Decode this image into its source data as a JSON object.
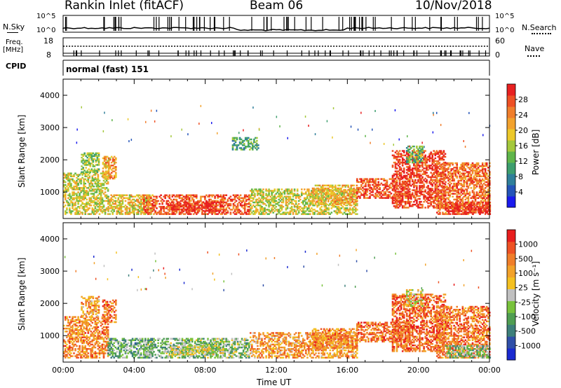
{
  "header": {
    "station": "Rankin Inlet (fitACF)",
    "beam": "Beam 06",
    "date": "10/Nov/2018"
  },
  "strips": {
    "nsky": {
      "left_label": "N.Sky",
      "left_ticks": [
        "10^5",
        "10^0"
      ],
      "right_label": "N.Search",
      "right_ticks": [
        "10^5",
        "10^0"
      ]
    },
    "freq": {
      "left_label": "Freq.",
      "left_unit": "[MHz]",
      "left_ticks": [
        "18",
        "8"
      ],
      "right_label": "Nave",
      "right_ticks": [
        "60",
        "0"
      ]
    },
    "cpid": {
      "left_label": "CPID",
      "text": "normal (fast) 151"
    }
  },
  "chart_data": [
    {
      "type": "heatmap",
      "name": "power-panel",
      "ylabel": "Slant Range [km]",
      "yticks": [
        "4000",
        "3000",
        "2000",
        "1000"
      ],
      "xticks": [
        "00:00",
        "04:00",
        "08:00",
        "12:00",
        "16:00",
        "20:00",
        "00:00"
      ],
      "xlim": [
        0,
        24
      ],
      "ylim": [
        180,
        4500
      ],
      "colorbar": {
        "label": "Power [dB]",
        "ticks": [
          "28",
          "24",
          "20",
          "16",
          "12",
          "8",
          "4"
        ],
        "range": [
          0,
          30
        ],
        "colors": [
          "#1a1aee",
          "#2454b8",
          "#2f7f9a",
          "#3d9e6e",
          "#5fb54a",
          "#a4c83c",
          "#ecc82a",
          "#f2a22e",
          "#f07e2c",
          "#ee5024",
          "#e82020"
        ]
      },
      "regions": [
        {
          "t0": 0.0,
          "t1": 2.5,
          "r0": 300,
          "r1": 1600,
          "level": 0.55
        },
        {
          "t0": 1.0,
          "t1": 2.0,
          "r0": 1600,
          "r1": 2200,
          "level": 0.45
        },
        {
          "t0": 2.2,
          "t1": 3.0,
          "r0": 1400,
          "r1": 2100,
          "level": 0.7
        },
        {
          "t0": 2.5,
          "t1": 5.0,
          "r0": 300,
          "r1": 900,
          "level": 0.6
        },
        {
          "t0": 4.5,
          "t1": 10.5,
          "r0": 300,
          "r1": 900,
          "level": 0.85
        },
        {
          "t0": 6.0,
          "t1": 9.0,
          "r0": 400,
          "r1": 700,
          "level": 0.95
        },
        {
          "t0": 10.5,
          "t1": 16.5,
          "r0": 300,
          "r1": 1100,
          "level": 0.55
        },
        {
          "t0": 14.0,
          "t1": 16.5,
          "r0": 600,
          "r1": 1200,
          "level": 0.65
        },
        {
          "t0": 16.5,
          "t1": 19.5,
          "r0": 800,
          "r1": 1400,
          "level": 0.85
        },
        {
          "t0": 18.5,
          "t1": 21.5,
          "r0": 500,
          "r1": 2300,
          "level": 0.9
        },
        {
          "t0": 21.0,
          "t1": 24.0,
          "r0": 300,
          "r1": 1900,
          "level": 0.8
        },
        {
          "t0": 21.5,
          "t1": 24.0,
          "r0": 300,
          "r1": 700,
          "level": 0.95
        },
        {
          "t0": 9.5,
          "t1": 11.0,
          "r0": 2300,
          "r1": 2700,
          "level": 0.35
        },
        {
          "t0": 19.3,
          "t1": 20.2,
          "r0": 1900,
          "r1": 2400,
          "level": 0.4
        }
      ]
    },
    {
      "type": "heatmap",
      "name": "velocity-panel",
      "ylabel": "Slant Range [km]",
      "yticks": [
        "4000",
        "3000",
        "2000",
        "1000"
      ],
      "xticks": [
        "00:00",
        "04:00",
        "08:00",
        "12:00",
        "16:00",
        "20:00",
        "00:00"
      ],
      "xlabel": "Time UT",
      "xlim": [
        0,
        24
      ],
      "ylim": [
        180,
        4500
      ],
      "colorbar": {
        "label": "Velocity [m s⁻¹]",
        "ticks": [
          "1000",
          "500",
          "100",
          "25",
          "-25",
          "-100",
          "-500",
          "-1000"
        ],
        "colors": [
          "#1a2ad0",
          "#2f4fa8",
          "#3d7f7a",
          "#4f9e52",
          "#78c23c",
          "#c0c0c0",
          "#f4c020",
          "#f2a22a",
          "#f07e2a",
          "#ee5224",
          "#e81e1e"
        ]
      },
      "regions": [
        {
          "t0": 0.0,
          "t1": 2.5,
          "r0": 300,
          "r1": 1600,
          "level": 0.75
        },
        {
          "t0": 1.0,
          "t1": 2.0,
          "r0": 1600,
          "r1": 2200,
          "level": 0.7
        },
        {
          "t0": 2.2,
          "t1": 3.0,
          "r0": 1400,
          "r1": 2100,
          "level": 0.8
        },
        {
          "t0": 2.5,
          "t1": 5.0,
          "r0": 300,
          "r1": 900,
          "level": 0.35
        },
        {
          "t0": 4.5,
          "t1": 10.5,
          "r0": 300,
          "r1": 900,
          "level": 0.4
        },
        {
          "t0": 6.0,
          "t1": 9.0,
          "r0": 400,
          "r1": 700,
          "level": 0.5
        },
        {
          "t0": 10.5,
          "t1": 16.5,
          "r0": 300,
          "r1": 1100,
          "level": 0.7
        },
        {
          "t0": 14.0,
          "t1": 16.5,
          "r0": 600,
          "r1": 1200,
          "level": 0.75
        },
        {
          "t0": 16.5,
          "t1": 19.5,
          "r0": 800,
          "r1": 1400,
          "level": 0.8
        },
        {
          "t0": 18.5,
          "t1": 21.5,
          "r0": 500,
          "r1": 2300,
          "level": 0.82
        },
        {
          "t0": 21.0,
          "t1": 24.0,
          "r0": 300,
          "r1": 1900,
          "level": 0.78
        },
        {
          "t0": 21.5,
          "t1": 24.0,
          "r0": 300,
          "r1": 700,
          "level": 0.4
        },
        {
          "t0": 19.3,
          "t1": 20.2,
          "r0": 1900,
          "r1": 2400,
          "level": 0.55
        }
      ]
    }
  ]
}
